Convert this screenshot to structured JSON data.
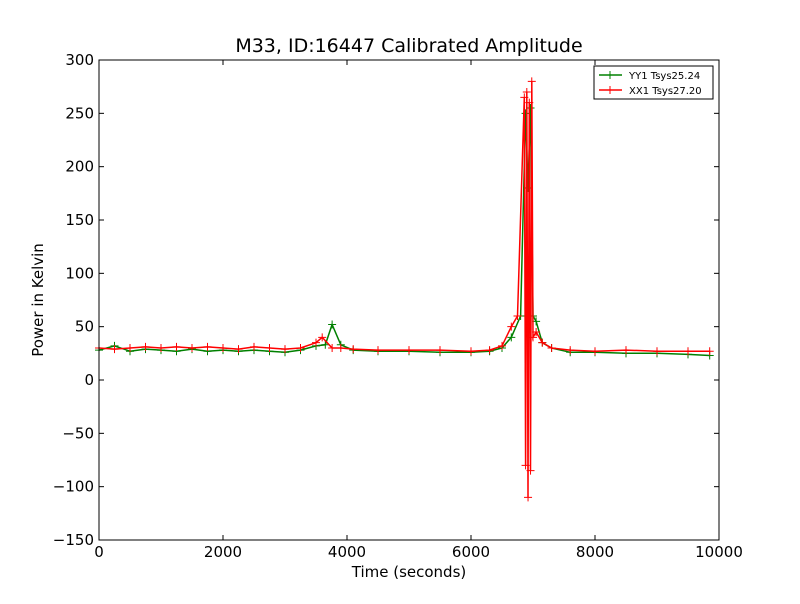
{
  "chart_data": {
    "type": "line",
    "title": "M33, ID:16447 Calibrated Amplitude",
    "xlabel": "Time (seconds)",
    "ylabel": "Power in Kelvin",
    "xlim": [
      0,
      10000
    ],
    "ylim": [
      -150,
      300
    ],
    "x_ticks": [
      0,
      2000,
      4000,
      6000,
      8000,
      10000
    ],
    "y_ticks": [
      -150,
      -100,
      -50,
      0,
      50,
      100,
      150,
      200,
      250,
      300
    ],
    "grid": false,
    "legend_position": "top-right",
    "marker": "+",
    "series": [
      {
        "name": "YY1 Tsys25.24",
        "color": "#008000",
        "x": [
          0,
          250,
          500,
          750,
          1000,
          1250,
          1500,
          1750,
          2000,
          2250,
          2500,
          2750,
          3000,
          3250,
          3500,
          3650,
          3760,
          3900,
          4100,
          4500,
          5000,
          5500,
          6000,
          6300,
          6500,
          6650,
          6800,
          6880,
          6920,
          6960,
          7000,
          7050,
          7150,
          7300,
          7600,
          8000,
          8500,
          9000,
          9500,
          9850
        ],
        "y": [
          28,
          32,
          27,
          29,
          28,
          27,
          29,
          27,
          28,
          27,
          28,
          27,
          26,
          28,
          32,
          33,
          52,
          33,
          28,
          27,
          27,
          26,
          26,
          27,
          30,
          40,
          60,
          250,
          180,
          255,
          60,
          55,
          35,
          30,
          26,
          26,
          25,
          25,
          24,
          23
        ]
      },
      {
        "name": "XX1 Tsys27.20",
        "color": "#ff0000",
        "x": [
          0,
          250,
          500,
          750,
          1000,
          1250,
          1500,
          1750,
          2000,
          2250,
          2500,
          2750,
          3000,
          3250,
          3500,
          3600,
          3760,
          3900,
          4100,
          4500,
          5000,
          5500,
          6000,
          6300,
          6500,
          6650,
          6750,
          6860,
          6880,
          6900,
          6920,
          6940,
          6960,
          6980,
          7000,
          7050,
          7150,
          7300,
          7600,
          8000,
          8500,
          9000,
          9500,
          9850
        ],
        "y": [
          30,
          29,
          30,
          31,
          30,
          31,
          30,
          31,
          30,
          29,
          31,
          30,
          29,
          30,
          35,
          40,
          30,
          30,
          29,
          28,
          28,
          28,
          27,
          28,
          32,
          50,
          60,
          265,
          -80,
          270,
          -110,
          260,
          -85,
          280,
          40,
          45,
          35,
          30,
          28,
          27,
          28,
          27,
          27,
          27
        ]
      }
    ]
  }
}
